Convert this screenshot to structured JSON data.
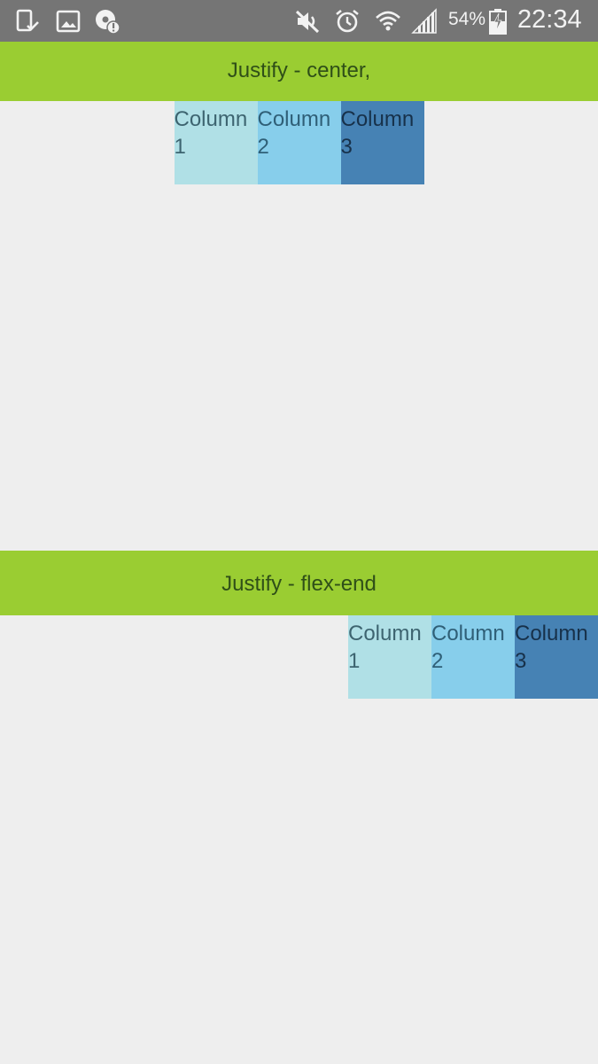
{
  "status_bar": {
    "battery_percent": "54%",
    "time": "22:34",
    "icons": [
      "device-check-icon",
      "image-icon",
      "sync-alert-icon",
      "mute-icon",
      "alarm-icon",
      "wifi-icon",
      "signal-icon",
      "battery-charging-icon"
    ]
  },
  "sections": [
    {
      "title": "Justify - center,",
      "columns": [
        {
          "line1": "Column",
          "line2": "1"
        },
        {
          "line1": "Column",
          "line2": "2"
        },
        {
          "line1": "Column",
          "line2": "3"
        }
      ]
    },
    {
      "title": "Justify - flex-end",
      "columns": [
        {
          "line1": "Column",
          "line2": "1"
        },
        {
          "line1": "Column",
          "line2": "2"
        },
        {
          "line1": "Column",
          "line2": "3"
        }
      ]
    }
  ],
  "colors": {
    "status_bar_bg": "#757575",
    "header_bg": "#9acd32",
    "page_bg": "#eeeeee",
    "column_1": "#b0e0e6",
    "column_2": "#87ceeb",
    "column_3": "#4682b4"
  }
}
